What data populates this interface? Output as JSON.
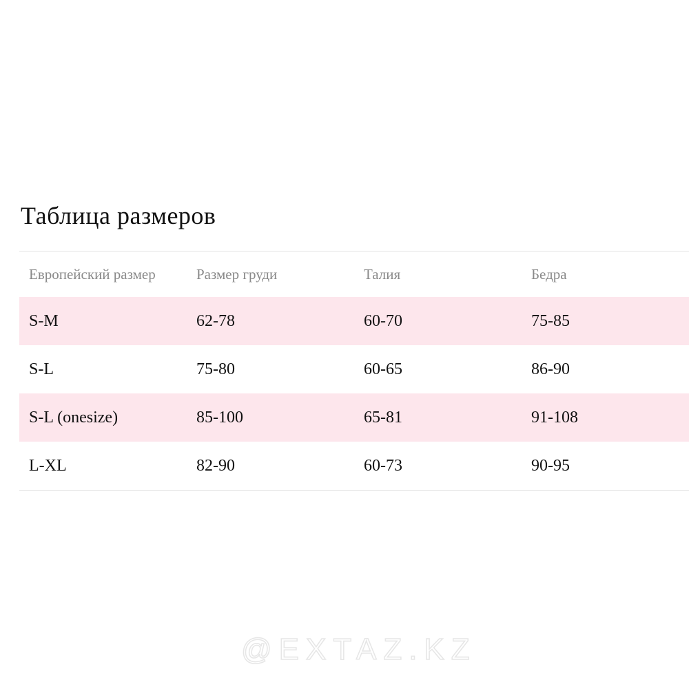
{
  "title": "Таблица размеров",
  "table": {
    "headers": [
      "Европейский размер",
      "Размер груди",
      "Талия",
      "Бедра"
    ],
    "rows": [
      [
        "S-M",
        "62-78",
        "60-70",
        "75-85"
      ],
      [
        "S-L",
        "75-80",
        "60-65",
        "86-90"
      ],
      [
        "S-L (onesize)",
        "85-100",
        "65-81",
        "91-108"
      ],
      [
        "L-XL",
        "82-90",
        "60-73",
        "90-95"
      ]
    ]
  },
  "watermark": "@EXTAZ.KZ",
  "colors": {
    "stripe": "#fde6ec",
    "header_text": "#8a8a8a"
  }
}
